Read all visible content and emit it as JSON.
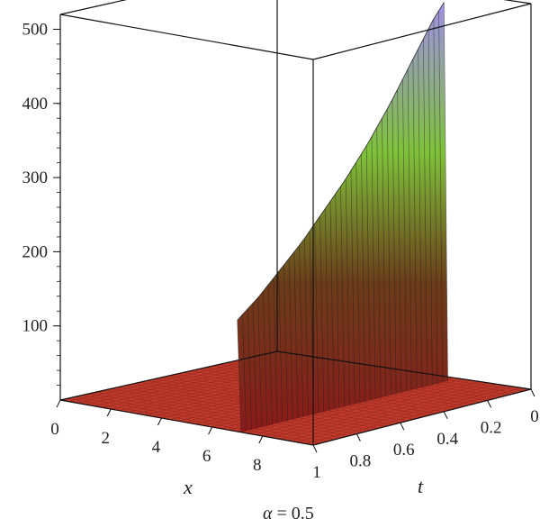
{
  "chart_data": {
    "type": "surface3d",
    "caption": {
      "symbol": "α",
      "rest": " = 0.5"
    },
    "x_axis": {
      "label": "x",
      "ticks": [
        "0",
        "2",
        "4",
        "6",
        "8"
      ],
      "range": [
        0,
        10
      ]
    },
    "t_axis": {
      "label": "t",
      "ticks": [
        "1",
        "0.8",
        "0.6",
        "0.4",
        "0.2",
        "0"
      ],
      "range": [
        1,
        0
      ]
    },
    "z_axis": {
      "label": "",
      "ticks": [
        "100",
        "200",
        "300",
        "400",
        "500"
      ],
      "range": [
        0,
        520
      ]
    },
    "ridge": {
      "x_position": 7,
      "t_values": [
        1,
        0.9,
        0.8,
        0.7,
        0.6,
        0.5,
        0.4,
        0.3,
        0.2,
        0.1,
        0.05
      ],
      "peak_values": [
        150,
        175,
        205,
        235,
        270,
        305,
        345,
        390,
        440,
        490,
        510
      ]
    },
    "floor_value": 0,
    "box": "on",
    "colors": {
      "floor": "#c0392b",
      "ridge_low": "#8b1a1a",
      "ridge_mid": "#7fc23a",
      "ridge_high": "#9f8fe6",
      "frame": "#111111"
    }
  }
}
